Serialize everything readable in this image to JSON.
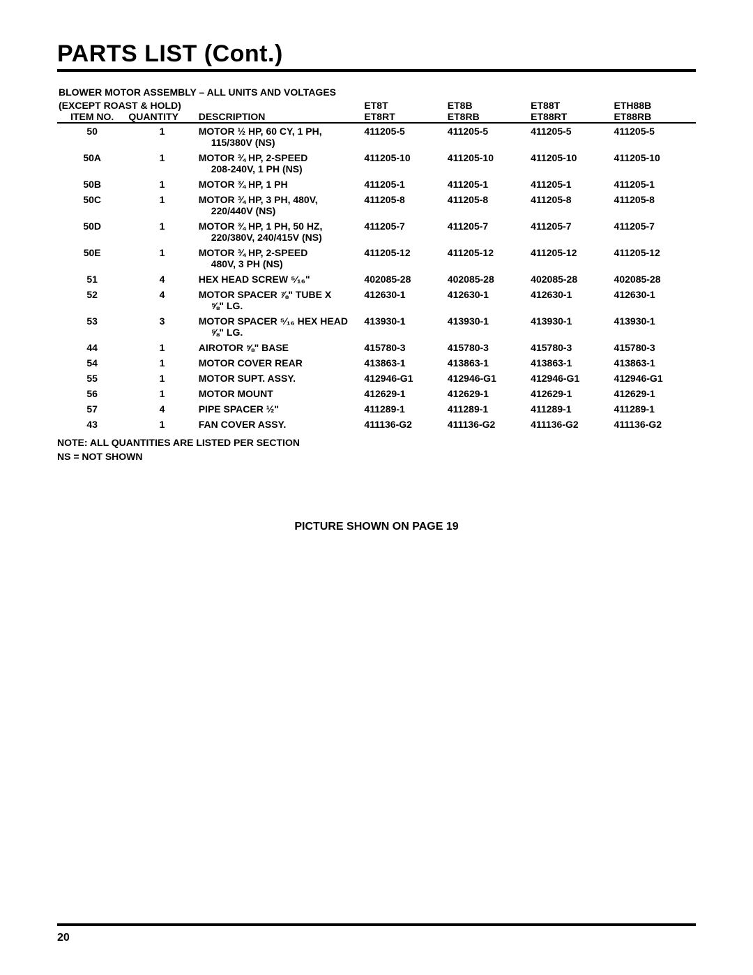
{
  "title": "PARTS LIST (Cont.)",
  "section_title_line1": "BLOWER MOTOR ASSEMBLY – ALL UNITS AND VOLTAGES",
  "section_title_line2": "(EXCEPT ROAST & HOLD)",
  "headers": {
    "item": "ITEM NO.",
    "qty": "QUANTITY",
    "desc": "DESCRIPTION",
    "m1_top": "ET8T",
    "m1_bot": "ET8RT",
    "m2_top": "ET8B",
    "m2_bot": "ET8RB",
    "m3_top": "ET88T",
    "m3_bot": "ET88RT",
    "m4_top": "ETH88B",
    "m4_bot": "ET88RB"
  },
  "rows": [
    {
      "item": "50",
      "qty": "1",
      "desc": "MOTOR ½ HP, 60 CY, 1 PH,",
      "desc2": "115/380V (NS)",
      "m1": "411205-5",
      "m2": "411205-5",
      "m3": "411205-5",
      "m4": "411205-5"
    },
    {
      "item": "50A",
      "qty": "1",
      "desc": "MOTOR ¾ HP, 2-SPEED",
      "desc2": "208-240V, 1 PH (NS)",
      "m1": "411205-10",
      "m2": "411205-10",
      "m3": "411205-10",
      "m4": "411205-10"
    },
    {
      "item": "50B",
      "qty": "1",
      "desc": "MOTOR ¾ HP, 1 PH",
      "desc2": "",
      "m1": "411205-1",
      "m2": "411205-1",
      "m3": "411205-1",
      "m4": "411205-1"
    },
    {
      "item": "50C",
      "qty": "1",
      "desc": "MOTOR ¾ HP, 3 PH, 480V,",
      "desc2": "220/440V (NS)",
      "m1": "411205-8",
      "m2": "411205-8",
      "m3": "411205-8",
      "m4": "411205-8"
    },
    {
      "item": "50D",
      "qty": "1",
      "desc": "MOTOR ¾ HP, 1 PH, 50 HZ,",
      "desc2": "220/380V, 240/415V (NS)",
      "m1": "411205-7",
      "m2": "411205-7",
      "m3": "411205-7",
      "m4": "411205-7"
    },
    {
      "item": "50E",
      "qty": "1",
      "desc": "MOTOR ¾ HP, 2-SPEED",
      "desc2": "480V, 3 PH (NS)",
      "m1": "411205-12",
      "m2": "411205-12",
      "m3": "411205-12",
      "m4": "411205-12"
    },
    {
      "item": "51",
      "qty": "4",
      "desc": "HEX HEAD SCREW ⁵⁄₁₆\"",
      "desc2": "",
      "m1": "402085-28",
      "m2": "402085-28",
      "m3": "402085-28",
      "m4": "402085-28"
    },
    {
      "item": "52",
      "qty": "4",
      "desc": "MOTOR SPACER ⅞\" TUBE X",
      "desc2": "⅝\" LG.",
      "m1": "412630-1",
      "m2": "412630-1",
      "m3": "412630-1",
      "m4": "412630-1"
    },
    {
      "item": "53",
      "qty": "3",
      "desc": "MOTOR SPACER ⁵⁄₁₆ HEX HEAD",
      "desc2": "⅝\" LG.",
      "m1": "413930-1",
      "m2": "413930-1",
      "m3": "413930-1",
      "m4": "413930-1"
    },
    {
      "item": "44",
      "qty": "1",
      "desc": "AIROTOR ⅝\" BASE",
      "desc2": "",
      "m1": "415780-3",
      "m2": "415780-3",
      "m3": "415780-3",
      "m4": "415780-3"
    },
    {
      "item": "54",
      "qty": "1",
      "desc": "MOTOR COVER REAR",
      "desc2": "",
      "m1": "413863-1",
      "m2": "413863-1",
      "m3": "413863-1",
      "m4": "413863-1"
    },
    {
      "item": "55",
      "qty": "1",
      "desc": "MOTOR SUPT. ASSY.",
      "desc2": "",
      "m1": "412946-G1",
      "m2": "412946-G1",
      "m3": "412946-G1",
      "m4": "412946-G1"
    },
    {
      "item": "56",
      "qty": "1",
      "desc": "MOTOR MOUNT",
      "desc2": "",
      "m1": "412629-1",
      "m2": "412629-1",
      "m3": "412629-1",
      "m4": "412629-1"
    },
    {
      "item": "57",
      "qty": "4",
      "desc": "PIPE SPACER ½\"",
      "desc2": "",
      "m1": "411289-1",
      "m2": "411289-1",
      "m3": "411289-1",
      "m4": "411289-1"
    },
    {
      "item": "43",
      "qty": "1",
      "desc": "FAN COVER ASSY.",
      "desc2": "",
      "m1": "411136-G2",
      "m2": "411136-G2",
      "m3": "411136-G2",
      "m4": "411136-G2"
    }
  ],
  "note1": "NOTE: ALL QUANTITIES ARE LISTED PER SECTION",
  "note2": "NS = NOT SHOWN",
  "picture_note": "PICTURE SHOWN ON PAGE 19",
  "page_number": "20"
}
